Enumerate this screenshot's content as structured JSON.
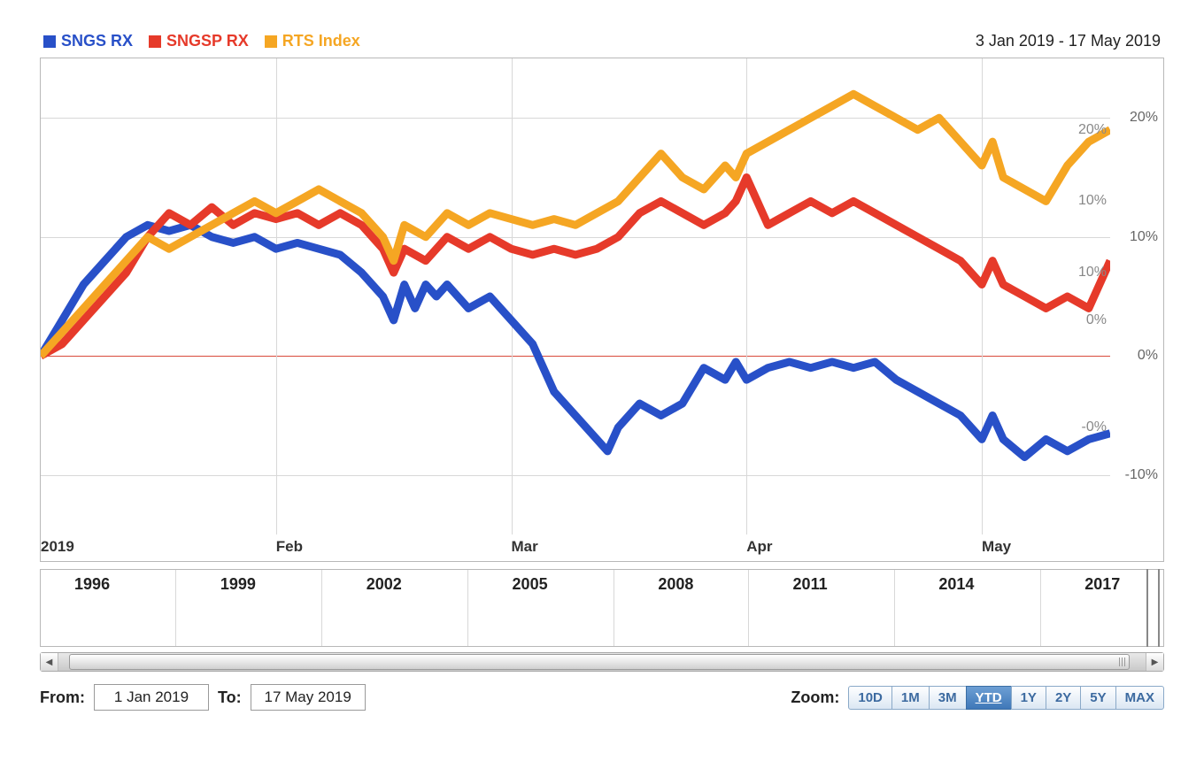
{
  "chart": {
    "type": "line",
    "date_range_label": "3 Jan 2019 - 17 May 2019",
    "background_color": "#ffffff",
    "grid_color": "#d8d8d8",
    "zero_line_color": "#d94a3a",
    "y_axis": {
      "min": -15,
      "max": 25,
      "ticks": [
        -10,
        0,
        10,
        20
      ],
      "tick_labels": [
        "-10%",
        "0%",
        "10%",
        "20%"
      ],
      "right_inner_labels": [
        {
          "value": 19,
          "text": "20%"
        },
        {
          "value": 13,
          "text": "10%"
        },
        {
          "value": 7,
          "text": "10%"
        },
        {
          "value": 3,
          "text": "0%"
        },
        {
          "value": -6,
          "text": "-0%"
        }
      ],
      "label_fontsize": 16,
      "label_color": "#666666"
    },
    "x_axis": {
      "start": 0,
      "end": 100,
      "ticks": [
        0,
        22,
        44,
        66,
        88
      ],
      "tick_labels": [
        "2019",
        "Feb",
        "Mar",
        "Apr",
        "May"
      ],
      "label_fontsize": 17,
      "label_color": "#333333"
    },
    "series": [
      {
        "id": "sngs_rx",
        "label": "SNGS RX",
        "color": "#2850c8",
        "line_width": 3,
        "data": [
          [
            0,
            0
          ],
          [
            2,
            3
          ],
          [
            4,
            6
          ],
          [
            6,
            8
          ],
          [
            8,
            10
          ],
          [
            10,
            11
          ],
          [
            12,
            10.5
          ],
          [
            14,
            11
          ],
          [
            16,
            10
          ],
          [
            18,
            9.5
          ],
          [
            20,
            10
          ],
          [
            22,
            9
          ],
          [
            24,
            9.5
          ],
          [
            26,
            9
          ],
          [
            28,
            8.5
          ],
          [
            30,
            7
          ],
          [
            32,
            5
          ],
          [
            33,
            3
          ],
          [
            34,
            6
          ],
          [
            35,
            4
          ],
          [
            36,
            6
          ],
          [
            37,
            5
          ],
          [
            38,
            6
          ],
          [
            40,
            4
          ],
          [
            42,
            5
          ],
          [
            44,
            3
          ],
          [
            46,
            1
          ],
          [
            48,
            -3
          ],
          [
            50,
            -5
          ],
          [
            52,
            -7
          ],
          [
            53,
            -8
          ],
          [
            54,
            -6
          ],
          [
            56,
            -4
          ],
          [
            58,
            -5
          ],
          [
            60,
            -4
          ],
          [
            62,
            -1
          ],
          [
            64,
            -2
          ],
          [
            65,
            -0.5
          ],
          [
            66,
            -2
          ],
          [
            68,
            -1
          ],
          [
            70,
            -0.5
          ],
          [
            72,
            -1
          ],
          [
            74,
            -0.5
          ],
          [
            76,
            -1
          ],
          [
            78,
            -0.5
          ],
          [
            80,
            -2
          ],
          [
            82,
            -3
          ],
          [
            84,
            -4
          ],
          [
            86,
            -5
          ],
          [
            88,
            -7
          ],
          [
            89,
            -5
          ],
          [
            90,
            -7
          ],
          [
            92,
            -8.5
          ],
          [
            94,
            -7
          ],
          [
            96,
            -8
          ],
          [
            98,
            -7
          ],
          [
            100,
            -6.5
          ]
        ]
      },
      {
        "id": "sngsp_rx",
        "label": "SNGSP RX",
        "color": "#e63a2a",
        "line_width": 3,
        "data": [
          [
            0,
            0
          ],
          [
            2,
            1
          ],
          [
            4,
            3
          ],
          [
            6,
            5
          ],
          [
            8,
            7
          ],
          [
            10,
            10
          ],
          [
            12,
            12
          ],
          [
            14,
            11
          ],
          [
            16,
            12.5
          ],
          [
            18,
            11
          ],
          [
            20,
            12
          ],
          [
            22,
            11.5
          ],
          [
            24,
            12
          ],
          [
            26,
            11
          ],
          [
            28,
            12
          ],
          [
            30,
            11
          ],
          [
            32,
            9
          ],
          [
            33,
            7
          ],
          [
            34,
            9
          ],
          [
            36,
            8
          ],
          [
            38,
            10
          ],
          [
            40,
            9
          ],
          [
            42,
            10
          ],
          [
            44,
            9
          ],
          [
            46,
            8.5
          ],
          [
            48,
            9
          ],
          [
            50,
            8.5
          ],
          [
            52,
            9
          ],
          [
            54,
            10
          ],
          [
            56,
            12
          ],
          [
            58,
            13
          ],
          [
            60,
            12
          ],
          [
            62,
            11
          ],
          [
            64,
            12
          ],
          [
            65,
            13
          ],
          [
            66,
            15
          ],
          [
            67,
            13
          ],
          [
            68,
            11
          ],
          [
            70,
            12
          ],
          [
            72,
            13
          ],
          [
            74,
            12
          ],
          [
            76,
            13
          ],
          [
            78,
            12
          ],
          [
            80,
            11
          ],
          [
            82,
            10
          ],
          [
            84,
            9
          ],
          [
            86,
            8
          ],
          [
            88,
            6
          ],
          [
            89,
            8
          ],
          [
            90,
            6
          ],
          [
            92,
            5
          ],
          [
            94,
            4
          ],
          [
            96,
            5
          ],
          [
            98,
            4
          ],
          [
            100,
            8
          ]
        ]
      },
      {
        "id": "rts_index",
        "label": "RTS Index",
        "color": "#f5a623",
        "line_width": 3,
        "data": [
          [
            0,
            0
          ],
          [
            2,
            2
          ],
          [
            4,
            4
          ],
          [
            6,
            6
          ],
          [
            8,
            8
          ],
          [
            10,
            10
          ],
          [
            12,
            9
          ],
          [
            14,
            10
          ],
          [
            16,
            11
          ],
          [
            18,
            12
          ],
          [
            20,
            13
          ],
          [
            22,
            12
          ],
          [
            24,
            13
          ],
          [
            26,
            14
          ],
          [
            28,
            13
          ],
          [
            30,
            12
          ],
          [
            32,
            10
          ],
          [
            33,
            8
          ],
          [
            34,
            11
          ],
          [
            36,
            10
          ],
          [
            38,
            12
          ],
          [
            40,
            11
          ],
          [
            42,
            12
          ],
          [
            44,
            11.5
          ],
          [
            46,
            11
          ],
          [
            48,
            11.5
          ],
          [
            50,
            11
          ],
          [
            52,
            12
          ],
          [
            54,
            13
          ],
          [
            56,
            15
          ],
          [
            58,
            17
          ],
          [
            60,
            15
          ],
          [
            62,
            14
          ],
          [
            64,
            16
          ],
          [
            65,
            15
          ],
          [
            66,
            17
          ],
          [
            68,
            18
          ],
          [
            70,
            19
          ],
          [
            72,
            20
          ],
          [
            74,
            21
          ],
          [
            76,
            22
          ],
          [
            78,
            21
          ],
          [
            80,
            20
          ],
          [
            82,
            19
          ],
          [
            84,
            20
          ],
          [
            86,
            18
          ],
          [
            88,
            16
          ],
          [
            89,
            18
          ],
          [
            90,
            15
          ],
          [
            92,
            14
          ],
          [
            94,
            13
          ],
          [
            96,
            16
          ],
          [
            98,
            18
          ],
          [
            100,
            19
          ]
        ]
      }
    ]
  },
  "overview": {
    "ticks": [
      {
        "pos": 3,
        "label": "1996"
      },
      {
        "pos": 16,
        "label": "1999"
      },
      {
        "pos": 29,
        "label": "2002"
      },
      {
        "pos": 42,
        "label": "2005"
      },
      {
        "pos": 55,
        "label": "2008"
      },
      {
        "pos": 67,
        "label": "2011"
      },
      {
        "pos": 80,
        "label": "2014"
      },
      {
        "pos": 93,
        "label": "2017"
      }
    ],
    "selection_start": 98.5,
    "selection_end": 99.5
  },
  "scrollbar": {
    "thumb_left_pct": 1,
    "thumb_right_pct": 1.5
  },
  "controls": {
    "from_label": "From:",
    "to_label": "To:",
    "from_value": "1 Jan 2019",
    "to_value": "17 May 2019",
    "zoom_label": "Zoom:",
    "zoom_options": [
      "10D",
      "1M",
      "3M",
      "YTD",
      "1Y",
      "2Y",
      "5Y",
      "MAX"
    ],
    "zoom_active": "YTD"
  }
}
